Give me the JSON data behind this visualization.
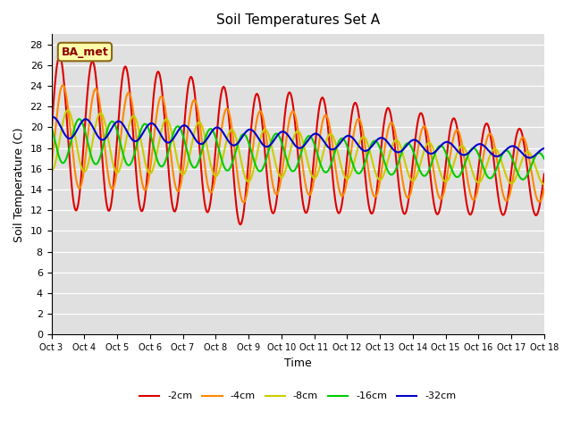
{
  "title": "Soil Temperatures Set A",
  "xlabel": "Time",
  "ylabel": "Soil Temperature (C)",
  "ylim": [
    0,
    29
  ],
  "yticks": [
    0,
    2,
    4,
    6,
    8,
    10,
    12,
    14,
    16,
    18,
    20,
    22,
    24,
    26,
    28
  ],
  "xtick_labels": [
    "Oct 3",
    "Oct 4",
    "Oct 5",
    "Oct 6",
    "Oct 7",
    "Oct 8",
    "Oct 9",
    "Oct 10",
    "Oct 11",
    "Oct 12",
    "Oct 13",
    "Oct 14",
    "Oct 15",
    "Oct 16",
    "Oct 17",
    "Oct 18"
  ],
  "colors": {
    "-2cm": "#dd0000",
    "-4cm": "#ff8800",
    "-8cm": "#cccc00",
    "-16cm": "#00cc00",
    "-32cm": "#0000cc"
  },
  "legend_label_box": "BA_met",
  "plot_bg_color": "#e0e0e0",
  "linewidth": 1.5,
  "n_days": 15,
  "points_per_day": 48
}
